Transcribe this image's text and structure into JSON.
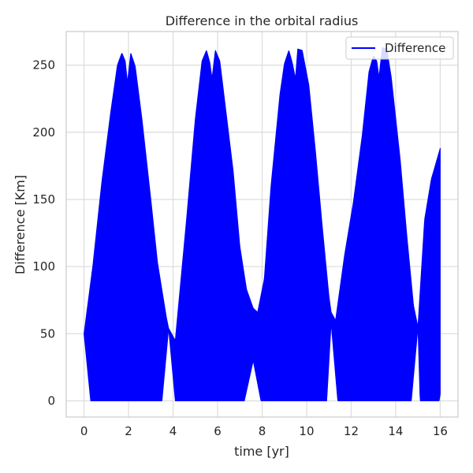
{
  "chart_data": {
    "type": "area",
    "title": "Difference in the orbital radius",
    "xlabel": "time [yr]",
    "ylabel": "Difference [Km]",
    "xlim": [
      -0.8,
      16.8
    ],
    "ylim": [
      -12,
      275
    ],
    "xticks": [
      0,
      2,
      4,
      6,
      8,
      10,
      12,
      14,
      16
    ],
    "yticks": [
      0,
      50,
      100,
      150,
      200,
      250
    ],
    "grid": true,
    "legend_position": "top-right",
    "series": [
      {
        "name": "Difference",
        "color": "#0000ff",
        "style": "dense oscillation band (lower bound to upper envelope)",
        "upper": [
          [
            0,
            50
          ],
          [
            0.4,
            101
          ],
          [
            0.8,
            163
          ],
          [
            1.2,
            215
          ],
          [
            1.5,
            250
          ],
          [
            1.7,
            259
          ],
          [
            1.85,
            253
          ],
          [
            1.95,
            237
          ],
          [
            2.1,
            259
          ],
          [
            2.3,
            249
          ],
          [
            2.6,
            210
          ],
          [
            3.0,
            150
          ],
          [
            3.3,
            103
          ],
          [
            3.7,
            62
          ],
          [
            3.8,
            54
          ],
          [
            4.1,
            45
          ],
          [
            4.6,
            134
          ],
          [
            5.0,
            210
          ],
          [
            5.3,
            253
          ],
          [
            5.5,
            261
          ],
          [
            5.65,
            252
          ],
          [
            5.75,
            240
          ],
          [
            5.9,
            261
          ],
          [
            6.1,
            253
          ],
          [
            6.4,
            212
          ],
          [
            6.7,
            171
          ],
          [
            7.0,
            115
          ],
          [
            7.3,
            83
          ],
          [
            7.6,
            69
          ],
          [
            7.8,
            66
          ],
          [
            8.1,
            91
          ],
          [
            8.4,
            160
          ],
          [
            8.8,
            228
          ],
          [
            9.0,
            251
          ],
          [
            9.2,
            261
          ],
          [
            9.35,
            252
          ],
          [
            9.5,
            240
          ],
          [
            9.6,
            262
          ],
          [
            9.8,
            261
          ],
          [
            10.1,
            235
          ],
          [
            10.4,
            185
          ],
          [
            10.7,
            130
          ],
          [
            11.0,
            78
          ],
          [
            11.1,
            66
          ],
          [
            11.3,
            60
          ],
          [
            11.7,
            108
          ],
          [
            12.1,
            148
          ],
          [
            12.5,
            198
          ],
          [
            12.8,
            245
          ],
          [
            13.0,
            257
          ],
          [
            13.15,
            253
          ],
          [
            13.25,
            241
          ],
          [
            13.4,
            263
          ],
          [
            13.6,
            262
          ],
          [
            13.8,
            241
          ],
          [
            14.2,
            180
          ],
          [
            14.5,
            123
          ],
          [
            14.8,
            71
          ],
          [
            15.0,
            55
          ],
          [
            15.3,
            135
          ],
          [
            15.6,
            165
          ],
          [
            16.0,
            188
          ]
        ],
        "lower": [
          [
            0,
            50
          ],
          [
            0.3,
            0
          ],
          [
            3.5,
            0
          ],
          [
            3.8,
            54
          ],
          [
            4.1,
            0
          ],
          [
            7.2,
            0
          ],
          [
            7.6,
            30
          ],
          [
            7.95,
            0
          ],
          [
            10.9,
            0
          ],
          [
            11.1,
            58
          ],
          [
            11.4,
            0
          ],
          [
            14.7,
            0
          ],
          [
            15.0,
            55
          ],
          [
            15.1,
            0
          ],
          [
            15.95,
            0
          ],
          [
            16.0,
            5
          ]
        ]
      }
    ]
  }
}
